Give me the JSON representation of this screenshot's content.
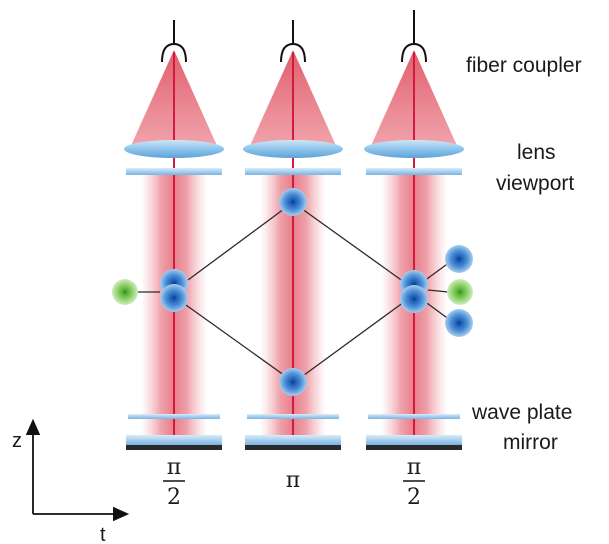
{
  "labels": {
    "fiber_coupler": "fiber coupler",
    "lens": "lens",
    "viewport": "viewport",
    "wave_plate": "wave plate",
    "mirror": "mirror"
  },
  "axes": {
    "vertical": "z",
    "horizontal": "t"
  },
  "pulses": [
    {
      "numerator": "π",
      "denominator": "2"
    },
    {
      "symbol": "π"
    },
    {
      "numerator": "π",
      "denominator": "2"
    }
  ],
  "colors": {
    "beam": "#e8808c",
    "beam_axis": "#d21c3c",
    "optic_blue": "#7fb8e4",
    "atom_blue": "#3d7fcf",
    "atom_green": "#7dc84a",
    "mirror_dark": "#2a2a2a"
  }
}
